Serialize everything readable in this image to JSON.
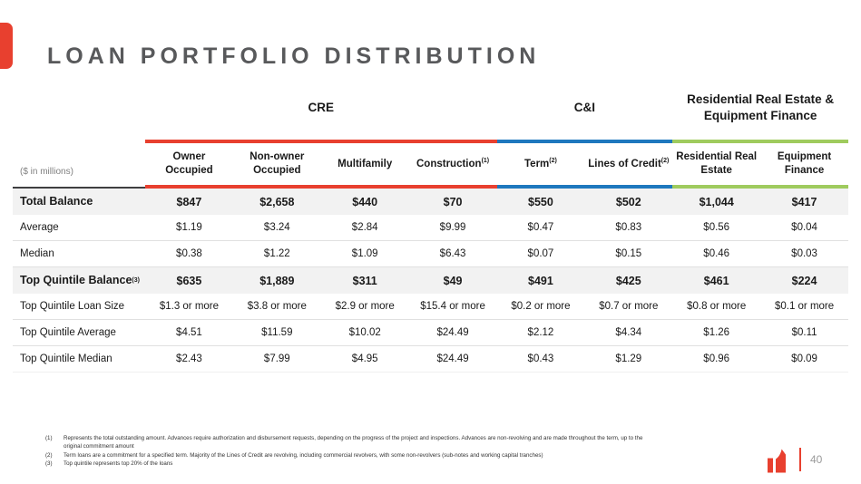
{
  "slide": {
    "title": "LOAN PORTFOLIO DISTRIBUTION",
    "page_number": "40"
  },
  "colors": {
    "accent_red": "#E8402F",
    "accent_blue": "#1E78BE",
    "accent_green": "#9FCB5E",
    "title_gray": "#58595B"
  },
  "table": {
    "units_label": "($ in millions)",
    "groups": [
      {
        "label": "CRE",
        "color": "#E8402F"
      },
      {
        "label": "C&I",
        "color": "#1E78BE"
      },
      {
        "label": "Residential Real Estate & Equipment Finance",
        "color": "#9FCB5E"
      }
    ],
    "columns": [
      {
        "label": "Owner Occupied",
        "sup": ""
      },
      {
        "label": "Non-owner Occupied",
        "sup": ""
      },
      {
        "label": "Multifamily",
        "sup": ""
      },
      {
        "label": "Construction",
        "sup": "(1)"
      },
      {
        "label": "Term",
        "sup": "(2)"
      },
      {
        "label": "Lines of Credit",
        "sup": "(2)"
      },
      {
        "label": "Residential Real Estate",
        "sup": ""
      },
      {
        "label": "Equipment Finance",
        "sup": ""
      }
    ],
    "rows": [
      {
        "label": "Total Balance",
        "sup": "",
        "bold": true,
        "values": [
          "$847",
          "$2,658",
          "$440",
          "$70",
          "$550",
          "$502",
          "$1,044",
          "$417"
        ]
      },
      {
        "label": "Average",
        "sup": "",
        "bold": false,
        "values": [
          "$1.19",
          "$3.24",
          "$2.84",
          "$9.99",
          "$0.47",
          "$0.83",
          "$0.56",
          "$0.04"
        ]
      },
      {
        "label": "Median",
        "sup": "",
        "bold": false,
        "values": [
          "$0.38",
          "$1.22",
          "$1.09",
          "$6.43",
          "$0.07",
          "$0.15",
          "$0.46",
          "$0.03"
        ]
      },
      {
        "label": "Top Quintile Balance",
        "sup": "(3)",
        "bold": true,
        "values": [
          "$635",
          "$1,889",
          "$311",
          "$49",
          "$491",
          "$425",
          "$461",
          "$224"
        ]
      },
      {
        "label": "Top Quintile Loan Size",
        "sup": "",
        "bold": false,
        "values": [
          "$1.3 or more",
          "$3.8 or more",
          "$2.9 or more",
          "$15.4 or more",
          "$0.2 or more",
          "$0.7 or more",
          "$0.8 or more",
          "$0.1 or more"
        ]
      },
      {
        "label": "Top Quintile Average",
        "sup": "",
        "bold": false,
        "values": [
          "$4.51",
          "$11.59",
          "$10.02",
          "$24.49",
          "$2.12",
          "$4.34",
          "$1.26",
          "$0.11"
        ]
      },
      {
        "label": "Top Quintile Median",
        "sup": "",
        "bold": false,
        "values": [
          "$2.43",
          "$7.99",
          "$4.95",
          "$24.49",
          "$0.43",
          "$1.29",
          "$0.96",
          "$0.09"
        ]
      }
    ]
  },
  "footnotes": [
    {
      "num": "(1)",
      "text": "Represents the total outstanding amount. Advances require authorization and disbursement requests, depending on the progress of the project and inspections. Advances are non-revolving and are made throughout the term, up to the original commitment amount"
    },
    {
      "num": "(2)",
      "text": "Term loans are a commitment for a specified term. Majority of the Lines of Credit are revolving, including commercial revolvers, with some non-revolvers (sub-notes and working capital tranches)"
    },
    {
      "num": "(3)",
      "text": "Top quintile represents top 20% of the loans"
    }
  ]
}
